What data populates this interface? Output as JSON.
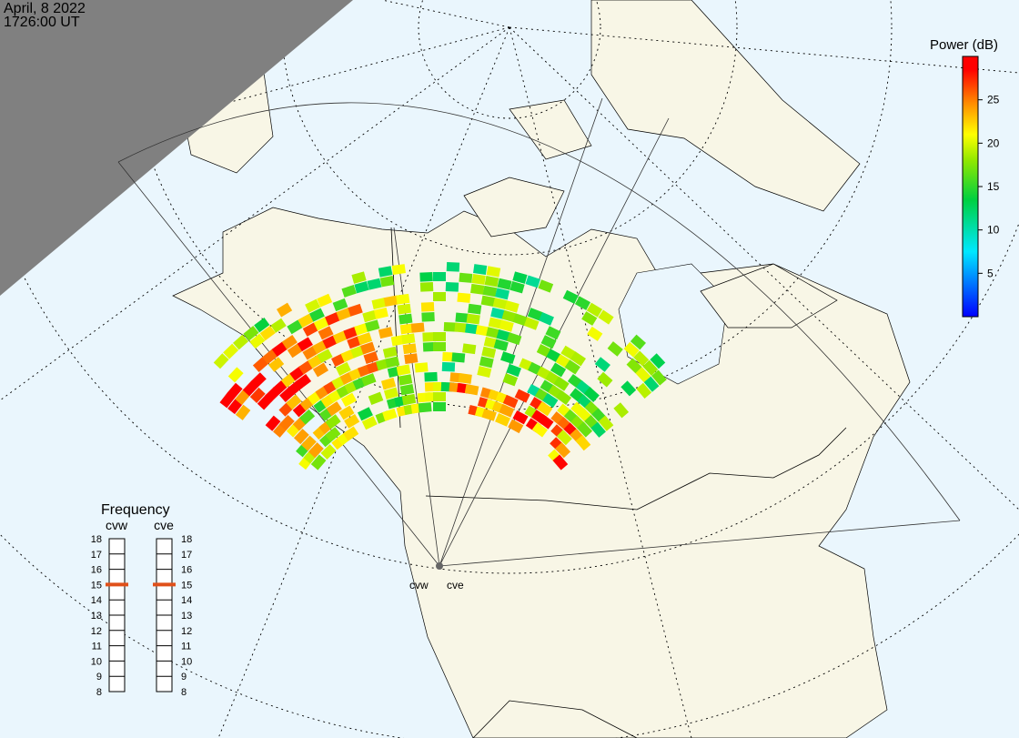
{
  "header": {
    "date": "April, 8 2022",
    "time": "1726:00 UT"
  },
  "colorbar": {
    "title": "Power (dB)",
    "lim": [
      0,
      30
    ],
    "ticks": [
      5,
      10,
      15,
      20,
      25
    ]
  },
  "frequency": {
    "title": "Frequency",
    "lim": [
      8,
      18
    ],
    "ticks": [
      8,
      9,
      10,
      11,
      12,
      13,
      14,
      15,
      16,
      17,
      18
    ],
    "radars": [
      {
        "name": "cvw",
        "value": 15
      },
      {
        "name": "cve",
        "value": 15
      }
    ]
  },
  "sites": [
    "cvw",
    "cve"
  ]
}
